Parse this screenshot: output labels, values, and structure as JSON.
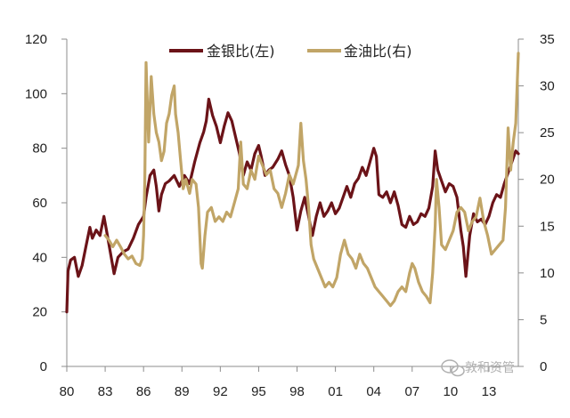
{
  "chart_data": {
    "type": "line",
    "title": "",
    "xlabel": "",
    "ylabel_left": "",
    "ylabel_right": "",
    "xlim": [
      1980,
      2015.3
    ],
    "ylim_left": [
      0,
      120
    ],
    "ylim_right": [
      0,
      35
    ],
    "x_ticks": [
      {
        "value": 1980,
        "label": "80"
      },
      {
        "value": 1983,
        "label": "83"
      },
      {
        "value": 1986,
        "label": "86"
      },
      {
        "value": 1989,
        "label": "89"
      },
      {
        "value": 1992,
        "label": "92"
      },
      {
        "value": 1995,
        "label": "95"
      },
      {
        "value": 1998,
        "label": "98"
      },
      {
        "value": 2001,
        "label": "01"
      },
      {
        "value": 2004,
        "label": "04"
      },
      {
        "value": 2007,
        "label": "07"
      },
      {
        "value": 2010,
        "label": "10"
      },
      {
        "value": 2013,
        "label": "13"
      }
    ],
    "y_ticks_left": [
      "0",
      "20",
      "40",
      "60",
      "80",
      "100",
      "120"
    ],
    "y_ticks_right": [
      "0",
      "5",
      "10",
      "15",
      "20",
      "25",
      "30",
      "35"
    ],
    "grid": false,
    "legend_position": "top",
    "series": [
      {
        "name": "金银比(左)",
        "axis": "left",
        "color": "#6b1318",
        "points": [
          [
            1980.0,
            20
          ],
          [
            1980.1,
            35
          ],
          [
            1980.3,
            39
          ],
          [
            1980.6,
            40
          ],
          [
            1980.9,
            33
          ],
          [
            1981.2,
            37
          ],
          [
            1981.5,
            44
          ],
          [
            1981.8,
            51
          ],
          [
            1982.0,
            47
          ],
          [
            1982.3,
            50
          ],
          [
            1982.6,
            48
          ],
          [
            1982.9,
            55
          ],
          [
            1983.1,
            50
          ],
          [
            1983.4,
            42
          ],
          [
            1983.7,
            34
          ],
          [
            1984.0,
            40
          ],
          [
            1984.4,
            42
          ],
          [
            1984.8,
            43
          ],
          [
            1985.2,
            47
          ],
          [
            1985.6,
            52
          ],
          [
            1986.0,
            55
          ],
          [
            1986.2,
            62
          ],
          [
            1986.5,
            70
          ],
          [
            1986.8,
            72
          ],
          [
            1987.0,
            66
          ],
          [
            1987.2,
            57
          ],
          [
            1987.4,
            63
          ],
          [
            1987.7,
            67
          ],
          [
            1988.0,
            68
          ],
          [
            1988.4,
            70
          ],
          [
            1988.8,
            66
          ],
          [
            1989.2,
            70
          ],
          [
            1989.6,
            67
          ],
          [
            1990.0,
            75
          ],
          [
            1990.4,
            82
          ],
          [
            1990.7,
            86
          ],
          [
            1990.9,
            90
          ],
          [
            1991.1,
            98
          ],
          [
            1991.4,
            92
          ],
          [
            1991.7,
            88
          ],
          [
            1992.0,
            82
          ],
          [
            1992.3,
            88
          ],
          [
            1992.6,
            93
          ],
          [
            1992.9,
            90
          ],
          [
            1993.2,
            84
          ],
          [
            1993.5,
            78
          ],
          [
            1993.8,
            70
          ],
          [
            1994.1,
            75
          ],
          [
            1994.4,
            72
          ],
          [
            1994.7,
            78
          ],
          [
            1995.0,
            81
          ],
          [
            1995.2,
            77
          ],
          [
            1995.5,
            70
          ],
          [
            1995.8,
            72
          ],
          [
            1996.1,
            73
          ],
          [
            1996.5,
            76
          ],
          [
            1996.8,
            79
          ],
          [
            1997.1,
            74
          ],
          [
            1997.4,
            70
          ],
          [
            1997.7,
            62
          ],
          [
            1998.0,
            50
          ],
          [
            1998.3,
            57
          ],
          [
            1998.6,
            62
          ],
          [
            1998.9,
            55
          ],
          [
            1999.2,
            48
          ],
          [
            1999.5,
            55
          ],
          [
            1999.8,
            60
          ],
          [
            2000.1,
            55
          ],
          [
            2000.4,
            57
          ],
          [
            2000.7,
            60
          ],
          [
            2001.0,
            56
          ],
          [
            2001.3,
            58
          ],
          [
            2001.6,
            62
          ],
          [
            2001.9,
            66
          ],
          [
            2002.2,
            62
          ],
          [
            2002.5,
            67
          ],
          [
            2002.8,
            69
          ],
          [
            2003.1,
            73
          ],
          [
            2003.4,
            70
          ],
          [
            2003.7,
            75
          ],
          [
            2004.0,
            80
          ],
          [
            2004.2,
            77
          ],
          [
            2004.4,
            63
          ],
          [
            2004.7,
            62
          ],
          [
            2005.0,
            64
          ],
          [
            2005.3,
            60
          ],
          [
            2005.6,
            64
          ],
          [
            2005.9,
            59
          ],
          [
            2006.2,
            52
          ],
          [
            2006.5,
            51
          ],
          [
            2006.8,
            55
          ],
          [
            2007.1,
            52
          ],
          [
            2007.4,
            53
          ],
          [
            2007.7,
            56
          ],
          [
            2008.0,
            55
          ],
          [
            2008.3,
            58
          ],
          [
            2008.6,
            66
          ],
          [
            2008.8,
            79
          ],
          [
            2009.0,
            72
          ],
          [
            2009.3,
            68
          ],
          [
            2009.6,
            64
          ],
          [
            2009.9,
            67
          ],
          [
            2010.2,
            66
          ],
          [
            2010.5,
            62
          ],
          [
            2010.8,
            50
          ],
          [
            2011.0,
            44
          ],
          [
            2011.2,
            33
          ],
          [
            2011.5,
            48
          ],
          [
            2011.8,
            56
          ],
          [
            2012.1,
            53
          ],
          [
            2012.4,
            54
          ],
          [
            2012.7,
            52
          ],
          [
            2013.0,
            55
          ],
          [
            2013.3,
            60
          ],
          [
            2013.6,
            63
          ],
          [
            2013.9,
            62
          ],
          [
            2014.2,
            67
          ],
          [
            2014.5,
            71
          ],
          [
            2014.8,
            75
          ],
          [
            2015.1,
            79
          ],
          [
            2015.3,
            78
          ]
        ]
      },
      {
        "name": "金油比(右)",
        "axis": "right",
        "color": "#c1a567",
        "points": [
          [
            1983.0,
            14.0
          ],
          [
            1983.3,
            13.5
          ],
          [
            1983.6,
            12.8
          ],
          [
            1983.9,
            13.5
          ],
          [
            1984.2,
            12.8
          ],
          [
            1984.5,
            12.0
          ],
          [
            1984.8,
            11.5
          ],
          [
            1985.1,
            11.8
          ],
          [
            1985.4,
            11.0
          ],
          [
            1985.7,
            10.8
          ],
          [
            1985.9,
            11.5
          ],
          [
            1986.0,
            14.0
          ],
          [
            1986.1,
            20.0
          ],
          [
            1986.2,
            32.5
          ],
          [
            1986.3,
            28.0
          ],
          [
            1986.4,
            24.0
          ],
          [
            1986.6,
            31.0
          ],
          [
            1986.8,
            27.0
          ],
          [
            1987.0,
            25.0
          ],
          [
            1987.2,
            24.0
          ],
          [
            1987.4,
            22.0
          ],
          [
            1987.6,
            23.0
          ],
          [
            1987.8,
            26.0
          ],
          [
            1988.0,
            27.0
          ],
          [
            1988.2,
            29.0
          ],
          [
            1988.4,
            30.0
          ],
          [
            1988.5,
            27.0
          ],
          [
            1988.7,
            25.0
          ],
          [
            1988.9,
            22.0
          ],
          [
            1989.1,
            19.0
          ],
          [
            1989.3,
            20.0
          ],
          [
            1989.6,
            18.5
          ],
          [
            1989.8,
            20.0
          ],
          [
            1990.1,
            19.5
          ],
          [
            1990.3,
            17.0
          ],
          [
            1990.5,
            11.0
          ],
          [
            1990.6,
            10.5
          ],
          [
            1990.8,
            14.0
          ],
          [
            1991.0,
            16.5
          ],
          [
            1991.3,
            17.0
          ],
          [
            1991.6,
            15.5
          ],
          [
            1991.9,
            16.0
          ],
          [
            1992.2,
            15.5
          ],
          [
            1992.5,
            16.5
          ],
          [
            1992.8,
            16.0
          ],
          [
            1993.1,
            17.5
          ],
          [
            1993.4,
            19.0
          ],
          [
            1993.6,
            24.0
          ],
          [
            1993.8,
            19.5
          ],
          [
            1994.1,
            19.0
          ],
          [
            1994.4,
            21.0
          ],
          [
            1994.7,
            20.0
          ],
          [
            1995.0,
            22.5
          ],
          [
            1995.3,
            21.5
          ],
          [
            1995.6,
            20.5
          ],
          [
            1995.9,
            21.0
          ],
          [
            1996.2,
            19.0
          ],
          [
            1996.5,
            18.5
          ],
          [
            1996.8,
            17.0
          ],
          [
            1997.1,
            18.5
          ],
          [
            1997.4,
            20.5
          ],
          [
            1997.7,
            19.5
          ],
          [
            1997.9,
            20.5
          ],
          [
            1998.1,
            21.5
          ],
          [
            1998.3,
            26.0
          ],
          [
            1998.5,
            22.0
          ],
          [
            1998.7,
            20.0
          ],
          [
            1998.9,
            17.0
          ],
          [
            1999.1,
            13.0
          ],
          [
            1999.3,
            11.5
          ],
          [
            1999.6,
            10.5
          ],
          [
            1999.9,
            9.5
          ],
          [
            2000.2,
            8.5
          ],
          [
            2000.5,
            9.0
          ],
          [
            2000.8,
            8.5
          ],
          [
            2001.1,
            9.5
          ],
          [
            2001.4,
            12.0
          ],
          [
            2001.7,
            13.5
          ],
          [
            2002.0,
            12.0
          ],
          [
            2002.3,
            11.5
          ],
          [
            2002.6,
            10.5
          ],
          [
            2002.9,
            12.0
          ],
          [
            2003.2,
            11.0
          ],
          [
            2003.5,
            10.5
          ],
          [
            2003.8,
            9.5
          ],
          [
            2004.1,
            8.5
          ],
          [
            2004.4,
            8.0
          ],
          [
            2004.7,
            7.5
          ],
          [
            2005.0,
            7.0
          ],
          [
            2005.3,
            6.5
          ],
          [
            2005.6,
            7.0
          ],
          [
            2005.9,
            8.0
          ],
          [
            2006.2,
            8.5
          ],
          [
            2006.5,
            8.0
          ],
          [
            2006.8,
            10.0
          ],
          [
            2007.0,
            11.0
          ],
          [
            2007.2,
            10.5
          ],
          [
            2007.5,
            9.0
          ],
          [
            2007.8,
            8.0
          ],
          [
            2008.1,
            7.5
          ],
          [
            2008.4,
            6.8
          ],
          [
            2008.6,
            10.0
          ],
          [
            2008.8,
            15.0
          ],
          [
            2008.9,
            20.0
          ],
          [
            2009.1,
            17.0
          ],
          [
            2009.3,
            13.0
          ],
          [
            2009.6,
            12.5
          ],
          [
            2009.9,
            13.5
          ],
          [
            2010.2,
            14.5
          ],
          [
            2010.5,
            16.5
          ],
          [
            2010.8,
            17.0
          ],
          [
            2011.1,
            16.5
          ],
          [
            2011.4,
            14.5
          ],
          [
            2011.7,
            15.5
          ],
          [
            2012.0,
            16.0
          ],
          [
            2012.3,
            18.0
          ],
          [
            2012.6,
            15.5
          ],
          [
            2012.9,
            14.0
          ],
          [
            2013.2,
            12.0
          ],
          [
            2013.5,
            12.5
          ],
          [
            2013.8,
            13.0
          ],
          [
            2014.1,
            13.5
          ],
          [
            2014.3,
            17.0
          ],
          [
            2014.5,
            25.5
          ],
          [
            2014.7,
            21.0
          ],
          [
            2014.9,
            24.0
          ],
          [
            2015.1,
            26.0
          ],
          [
            2015.3,
            33.5
          ]
        ]
      }
    ]
  },
  "watermark": {
    "text": "敦和资管",
    "icon": "wechat-icon"
  }
}
